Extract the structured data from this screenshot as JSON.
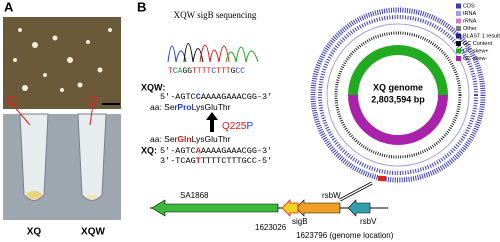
{
  "panel_a": {
    "label": "A",
    "strains": [
      "XQ",
      "XQW"
    ]
  },
  "panel_b": {
    "label": "B",
    "sequencing_title": "XQW sigB sequencing",
    "chromatogram_bases": "TCAGGTTTTCTTTGCC",
    "xqw": {
      "label": "XQW:",
      "dna": {
        "pre": "5'-AGTC",
        "mut": "C",
        "post": "AAAAGAAACGG-3'"
      },
      "aa": {
        "pre": "aa: Ser",
        "mut": "Pro",
        "post": "LysGluThr"
      }
    },
    "mutation": {
      "from": "Q225",
      "to": "P"
    },
    "xq": {
      "label": "XQ:",
      "aa": {
        "pre": "aa: Ser",
        "mut": "Gln",
        "post": "LysGluThr"
      },
      "dna5": {
        "pre": "5'-AGTC",
        "mut": "A",
        "post": "AAAAGAAACGG-3'"
      },
      "dna3": {
        "pre": "3'-TCAG",
        "mut": "T",
        "post": "TTTTCTTTGCC-5'"
      }
    },
    "genome": {
      "name": "XQ genome",
      "size": "2,803,594 bp"
    },
    "legend": [
      {
        "name": "CDS",
        "color": "#3b3bb0"
      },
      {
        "name": "tRNA",
        "color": "#a0a0e0"
      },
      {
        "name": "rRNA",
        "color": "#d080d0"
      },
      {
        "name": "Other",
        "color": "#808080"
      },
      {
        "name": "BLAST 1 results",
        "color": "#202080"
      },
      {
        "name": "GC Content",
        "color": "#000000"
      },
      {
        "name": "GC skew+",
        "color": "#22aa22"
      },
      {
        "name": "GC skew-",
        "color": "#aa22aa"
      }
    ],
    "genes": [
      "SA1868",
      "rsbW",
      "sigB",
      "rsbV"
    ],
    "locations": [
      "1623026",
      "1623796 (genome location)"
    ]
  }
}
